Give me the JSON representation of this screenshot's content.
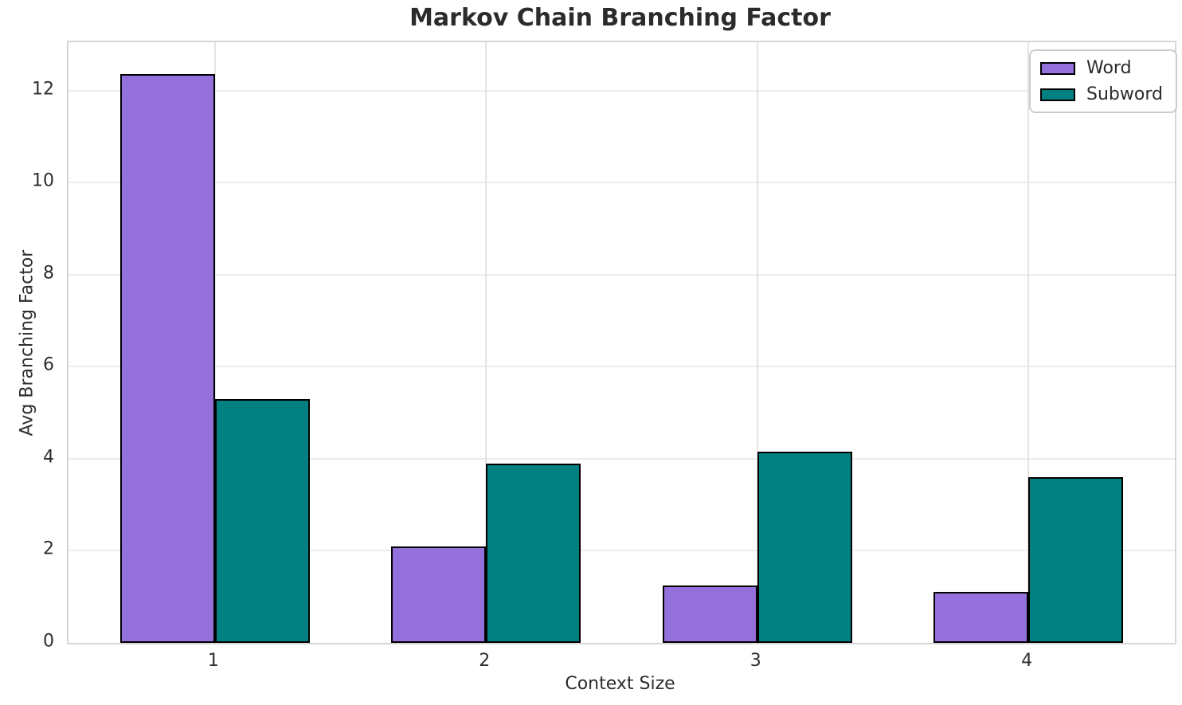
{
  "figure": {
    "title": "Markov Chain Branching Factor",
    "xlabel": "Context Size",
    "ylabel": "Avg Branching Factor"
  },
  "chart_data": {
    "type": "bar",
    "title": "Markov Chain Branching Factor",
    "xlabel": "Context Size",
    "ylabel": "Avg Branching Factor",
    "categories": [
      "1",
      "2",
      "3",
      "4"
    ],
    "series": [
      {
        "name": "Word",
        "color": "#9370db",
        "values": [
          12.35,
          2.1,
          1.25,
          1.1
        ]
      },
      {
        "name": "Subword",
        "color": "#008080",
        "values": [
          5.3,
          3.9,
          4.15,
          3.6
        ]
      }
    ],
    "yticks": [
      0,
      2,
      4,
      6,
      8,
      10,
      12
    ],
    "ylim": [
      0,
      13.05
    ],
    "bar_width": 0.35,
    "grid": true,
    "legend_position": "upper right",
    "bar_edge_color": "#000000"
  }
}
